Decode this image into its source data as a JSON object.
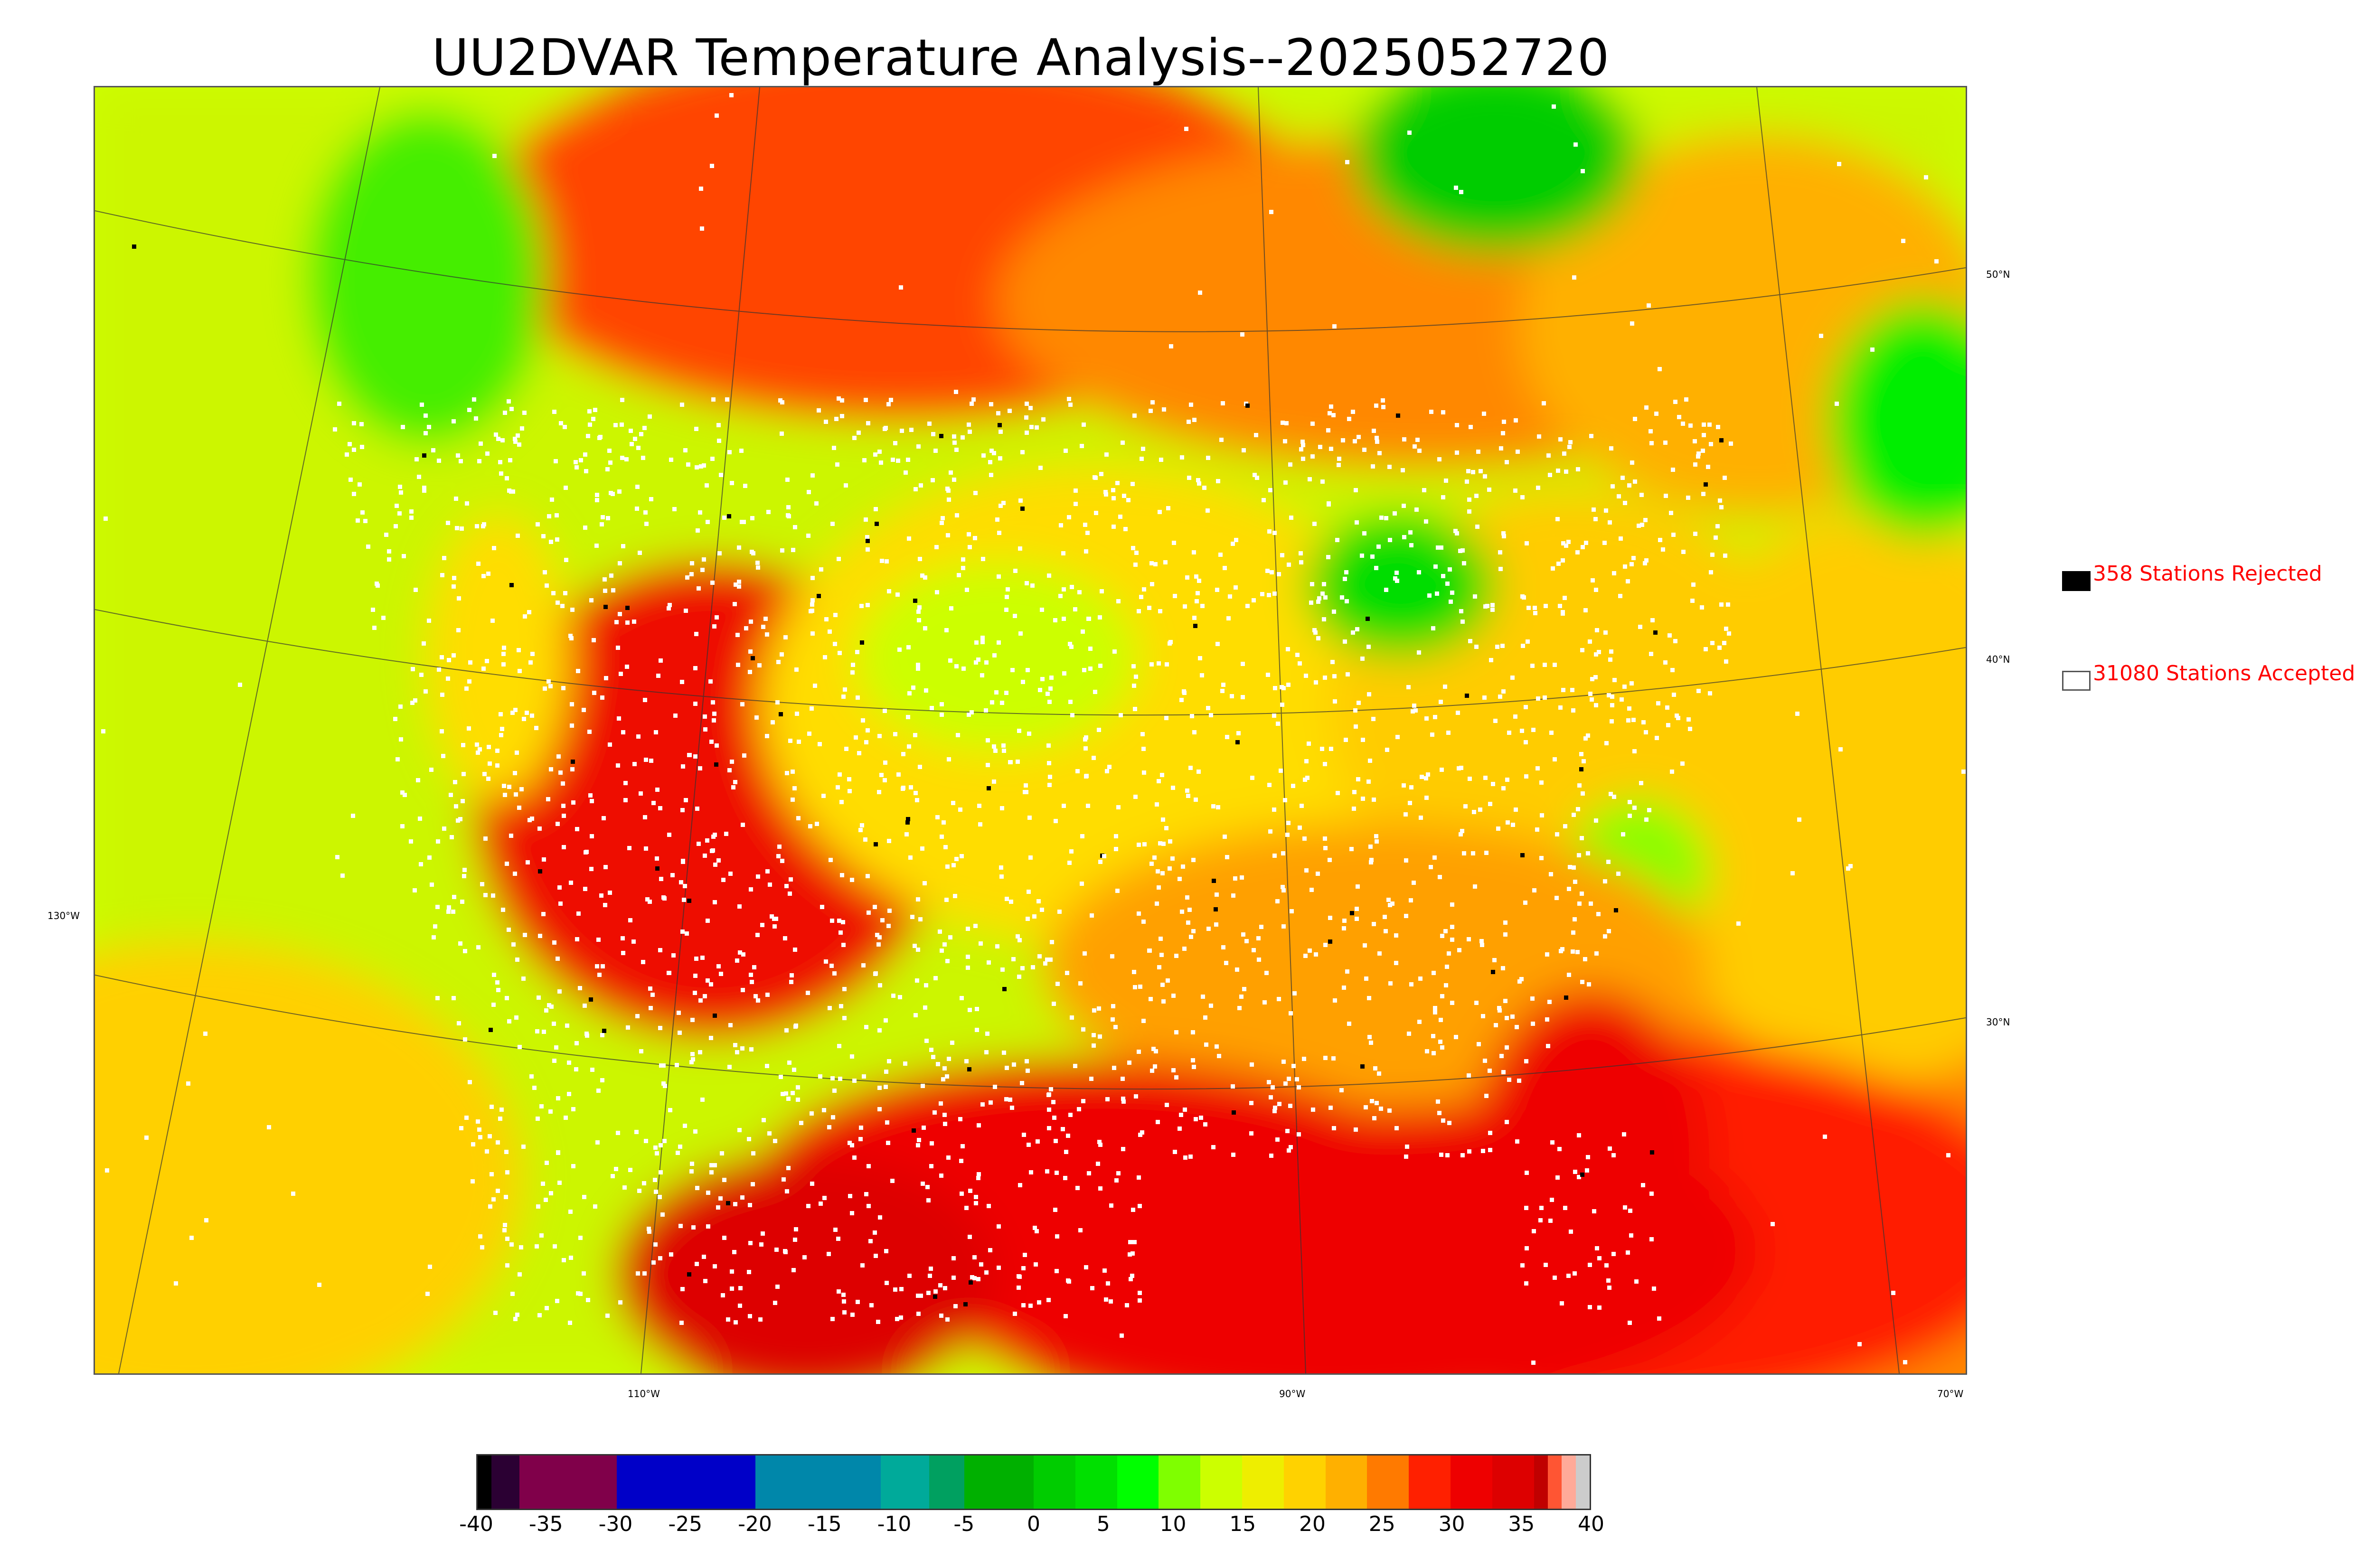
{
  "title": "UU2DVAR Temperature Analysis--2025052720",
  "map": {
    "latitude_labels": [
      "50°N",
      "40°N",
      "30°N"
    ],
    "longitude_labels": [
      "130°W",
      "110°W",
      "90°W",
      "70°W"
    ]
  },
  "legend": {
    "rejected": {
      "label": "358 Stations Rejected",
      "count": 358,
      "color": "#000000"
    },
    "accepted": {
      "label": "31080 Stations Accepted",
      "count": 31080,
      "color": "#ffffff"
    }
  },
  "colorbar": {
    "tick_labels": [
      "-40",
      "-35",
      "-30",
      "-25",
      "-20",
      "-15",
      "-10",
      "-5",
      "0",
      "5",
      "10",
      "15",
      "20",
      "25",
      "30",
      "35",
      "40"
    ],
    "range": [
      -40,
      40
    ],
    "segments": [
      {
        "from": -40,
        "to": -39,
        "color": "#000000"
      },
      {
        "from": -39,
        "to": -37,
        "color": "#2b0033"
      },
      {
        "from": -37,
        "to": -30,
        "color": "#80004a"
      },
      {
        "from": -30,
        "to": -20,
        "color": "#0000c8"
      },
      {
        "from": -20,
        "to": -11,
        "color": "#0087aa"
      },
      {
        "from": -11,
        "to": -7.5,
        "color": "#00aa9a"
      },
      {
        "from": -7.5,
        "to": -5,
        "color": "#00a060"
      },
      {
        "from": -5,
        "to": 0,
        "color": "#00b000"
      },
      {
        "from": 0,
        "to": 3,
        "color": "#00cc00"
      },
      {
        "from": 3,
        "to": 6,
        "color": "#00e000"
      },
      {
        "from": 6,
        "to": 9,
        "color": "#00ff00"
      },
      {
        "from": 9,
        "to": 12,
        "color": "#7fff00"
      },
      {
        "from": 12,
        "to": 15,
        "color": "#ccff00"
      },
      {
        "from": 15,
        "to": 18,
        "color": "#eeee00"
      },
      {
        "from": 18,
        "to": 21,
        "color": "#ffd200"
      },
      {
        "from": 21,
        "to": 24,
        "color": "#ffb000"
      },
      {
        "from": 24,
        "to": 27,
        "color": "#ff7a00"
      },
      {
        "from": 27,
        "to": 30,
        "color": "#ff2000"
      },
      {
        "from": 30,
        "to": 33,
        "color": "#ee0000"
      },
      {
        "from": 33,
        "to": 36,
        "color": "#dd0000"
      },
      {
        "from": 36,
        "to": 37,
        "color": "#c00000"
      },
      {
        "from": 37,
        "to": 38,
        "color": "#ff5533"
      },
      {
        "from": 38,
        "to": 39,
        "color": "#ffaa99"
      },
      {
        "from": 39,
        "to": 40,
        "color": "#cccccc"
      }
    ]
  },
  "colors": {
    "ocean_pacific": "#ccff00",
    "hot": "#ee0000",
    "warm": "#ffa000",
    "mild": "#eeee00",
    "cool": "#00ee00"
  }
}
